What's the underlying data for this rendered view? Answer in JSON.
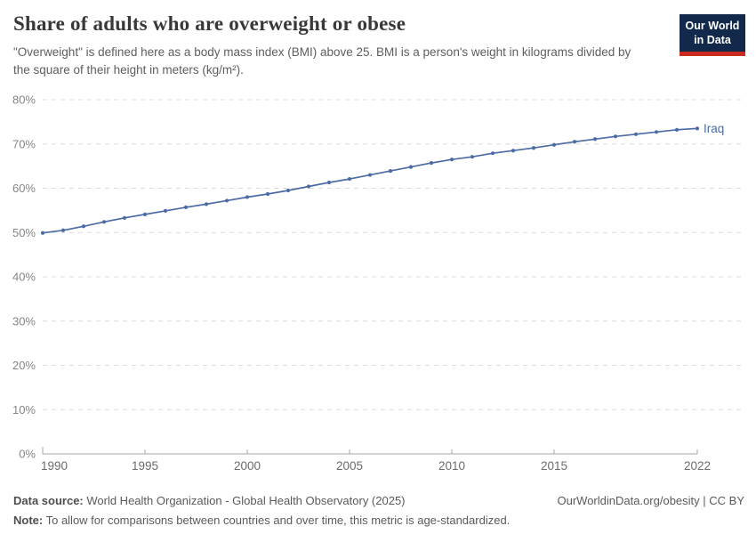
{
  "header": {
    "title": "Share of adults who are overweight or obese",
    "subtitle": "\"Overweight\" is defined here as a body mass index (BMI) above 25. BMI is a person's weight in kilograms divided by the square of their height in meters (kg/m²)."
  },
  "logo": {
    "line1": "Our World",
    "line2": "in Data",
    "bg_color": "#13294b",
    "bar_color": "#ca2b21"
  },
  "chart_data": {
    "type": "line",
    "title": "Share of adults who are overweight or obese",
    "xlabel": "",
    "ylabel": "",
    "unit": "%",
    "xlim": [
      1990,
      2022
    ],
    "ylim": [
      0,
      80
    ],
    "x_ticks": [
      1990,
      1995,
      2000,
      2005,
      2010,
      2015,
      2022
    ],
    "y_ticks": [
      0,
      10,
      20,
      30,
      40,
      50,
      60,
      70,
      80
    ],
    "grid": "horizontal-dashed",
    "legend_position": "end-of-line-label",
    "x": [
      1990,
      1991,
      1992,
      1993,
      1994,
      1995,
      1996,
      1997,
      1998,
      1999,
      2000,
      2001,
      2002,
      2003,
      2004,
      2005,
      2006,
      2007,
      2008,
      2009,
      2010,
      2011,
      2012,
      2013,
      2014,
      2015,
      2016,
      2017,
      2018,
      2019,
      2020,
      2021,
      2022
    ],
    "series": [
      {
        "name": "Iraq",
        "color": "#4c6ba5",
        "values": [
          49.9,
          50.5,
          51.4,
          52.4,
          53.3,
          54.1,
          54.9,
          55.7,
          56.4,
          57.2,
          58.0,
          58.7,
          59.5,
          60.4,
          61.3,
          62.1,
          63.0,
          63.9,
          64.8,
          65.7,
          66.5,
          67.1,
          67.9,
          68.5,
          69.1,
          69.8,
          70.5,
          71.1,
          71.7,
          72.2,
          72.7,
          73.2,
          73.5
        ]
      }
    ],
    "colors": {
      "gridline": "#dcdcdc",
      "axis_line": "#a5a5a5",
      "y_tick_label": "#858585",
      "x_tick_label": "#6b6b6b"
    }
  },
  "footer": {
    "datasource_label": "Data source:",
    "datasource_text": " World Health Organization - Global Health Observatory (2025)",
    "link": "OurWorldinData.org/obesity | CC BY",
    "note_label": "Note:",
    "note_text": " To allow for comparisons between countries and over time, this metric is age-standardized."
  }
}
